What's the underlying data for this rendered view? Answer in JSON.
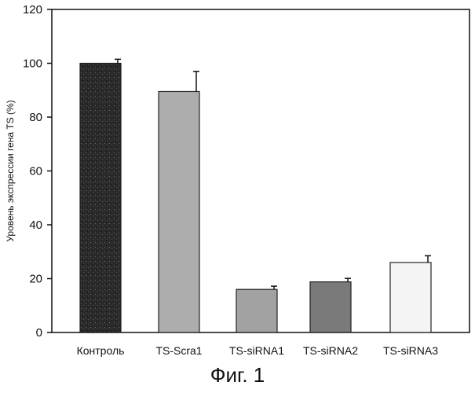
{
  "chart_data": {
    "type": "bar",
    "title": "",
    "xlabel": "",
    "ylabel": "Уровень экспрессии гена TS (%)",
    "categories": [
      "Контроль",
      "TS-Scra1",
      "TS-siRNA1",
      "TS-siRNA2",
      "TS-siRNA3"
    ],
    "values": [
      100,
      89.5,
      16,
      18.8,
      26
    ],
    "errors": [
      1.5,
      7.5,
      1.2,
      1.3,
      2.5
    ],
    "bar_colors": [
      "#222222",
      "#adadad",
      "#a2a2a2",
      "#7a7a7a",
      "#f4f4f4"
    ],
    "ylim": [
      0,
      120
    ],
    "yticks": [
      0,
      20,
      40,
      60,
      80,
      100,
      120
    ],
    "grid": false,
    "legend": "none"
  },
  "caption": "Фиг. 1"
}
